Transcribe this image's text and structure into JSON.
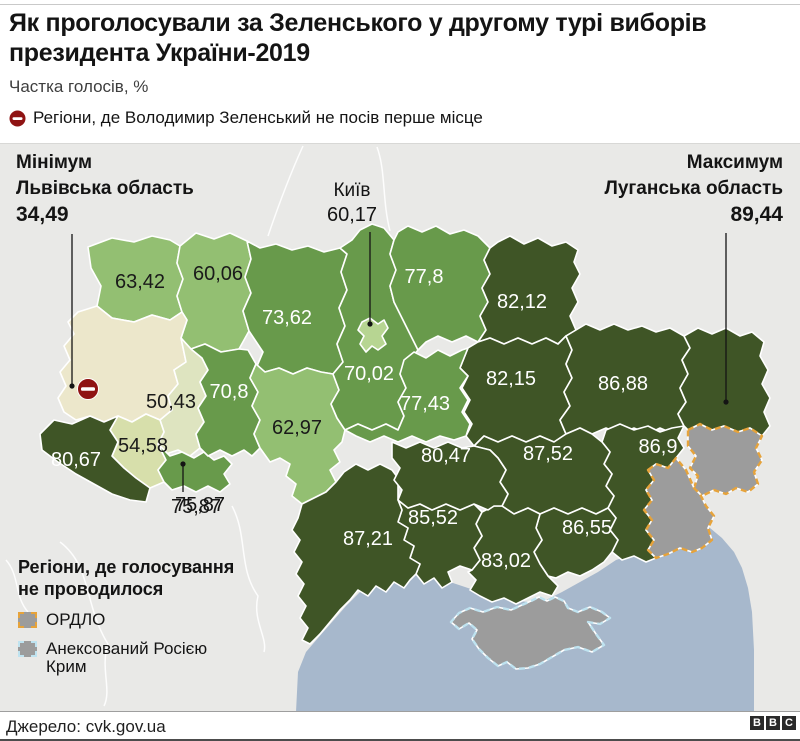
{
  "header": {
    "title": "Як проголосували за Зеленського у другому турі виборів президента України-2019",
    "subtitle": "Частка голосів, %",
    "note": "Регіони, де Володимир Зеленський не посів перше місце"
  },
  "annotations": {
    "min": {
      "label": "Мінімум",
      "region": "Львівська область",
      "value": "34,49"
    },
    "kyiv": {
      "label": "Київ",
      "value": "60,17"
    },
    "max": {
      "label": "Максимум",
      "region": "Луганська область",
      "value": "89,44"
    },
    "chernivtsi_outside_value": "75,87"
  },
  "palette": {
    "background": "#e9e9e7",
    "min": "#ece7cb",
    "s50": "#dee4c0",
    "s55": "#d7dfab",
    "s60": "#93bf72",
    "s70": "#689a4b",
    "s80": "#3f5526",
    "city": "#b7d592",
    "no_vote_gray": "#9c9c9c",
    "sea": "#a7b8cc",
    "ordlo_border": "#e6a33b",
    "crimea_border": "#bfe3f0",
    "icon_red": "#8f1313",
    "label_dark": "#1a1a1a",
    "label_light": "#ffffff"
  },
  "chart_data": {
    "type": "choropleth",
    "title": "Як проголосували за Зеленського у другому турі виборів президента України-2019",
    "unit": "Частка голосів, %",
    "regions": [
      {
        "id": "volyn",
        "value": "63,42",
        "tone": "s60"
      },
      {
        "id": "rivne",
        "value": "60,06",
        "tone": "s60"
      },
      {
        "id": "lviv",
        "value": "34,49",
        "tone": "min",
        "note": "minimum, not first place"
      },
      {
        "id": "ternopil",
        "value": "50,43",
        "tone": "s50"
      },
      {
        "id": "ivano_frankivsk",
        "value": "54,58",
        "tone": "s55"
      },
      {
        "id": "zakarpattia",
        "value": "80,67",
        "tone": "s80"
      },
      {
        "id": "chernivtsi",
        "value": "75,87",
        "tone": "s70"
      },
      {
        "id": "khmelnytskyi",
        "value": "70,8",
        "tone": "s70"
      },
      {
        "id": "zhytomyr",
        "value": "73,62",
        "tone": "s70"
      },
      {
        "id": "vinnytsia",
        "value": "62,97",
        "tone": "s60"
      },
      {
        "id": "kyiv_oblast",
        "value": "70,02",
        "tone": "s70"
      },
      {
        "id": "kyiv_city",
        "value": "60,17",
        "tone": "city"
      },
      {
        "id": "chernihiv",
        "value": "77,8",
        "tone": "s70"
      },
      {
        "id": "sumy",
        "value": "82,12",
        "tone": "s80"
      },
      {
        "id": "poltava",
        "value": "82,15",
        "tone": "s80"
      },
      {
        "id": "kharkiv",
        "value": "86,88",
        "tone": "s80"
      },
      {
        "id": "luhansk",
        "value": "89,44",
        "tone": "s80",
        "note": "maximum"
      },
      {
        "id": "donetsk",
        "value": "86,9",
        "tone": "s80"
      },
      {
        "id": "dnipro",
        "value": "87,52",
        "tone": "s80"
      },
      {
        "id": "zaporizhzhia",
        "value": "86,55",
        "tone": "s80"
      },
      {
        "id": "kherson",
        "value": "83,02",
        "tone": "s80"
      },
      {
        "id": "mykolaiv",
        "value": "85,52",
        "tone": "s80"
      },
      {
        "id": "odesa",
        "value": "87,21",
        "tone": "s80"
      },
      {
        "id": "kirovohrad",
        "value": "80,47",
        "tone": "s80"
      },
      {
        "id": "cherkasy",
        "value": "77,43",
        "tone": "s70"
      }
    ]
  },
  "no_vote_legend": {
    "title_line1": "Регіони, де голосування",
    "title_line2": "не проводилося",
    "items": [
      {
        "id": "ordlo",
        "label": "ОРДЛО"
      },
      {
        "id": "crimea",
        "label": "Анексований Росією Крим"
      }
    ]
  },
  "footer": {
    "source": "Джерело: cvk.gov.ua",
    "logo": [
      "B",
      "B",
      "C"
    ]
  }
}
